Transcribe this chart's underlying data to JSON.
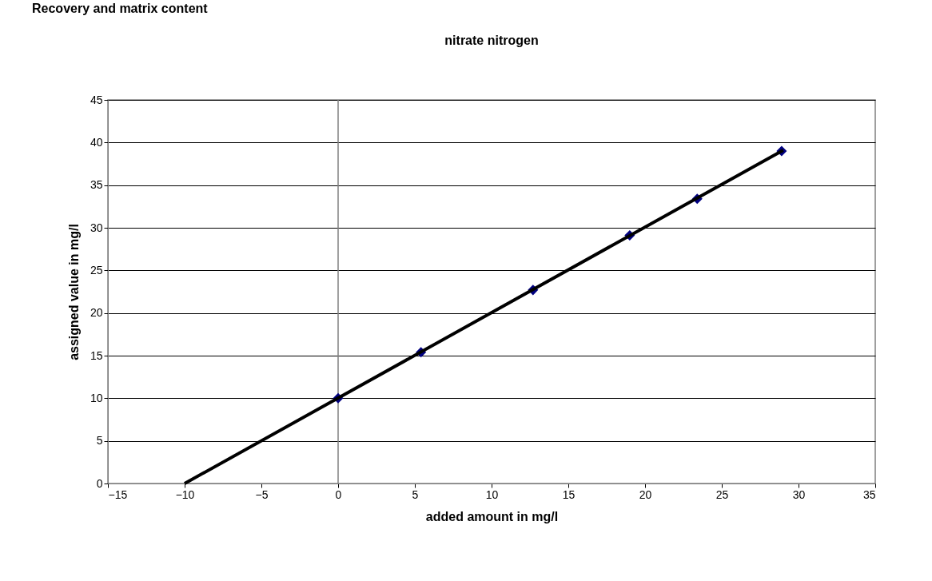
{
  "chart_data": {
    "type": "scatter",
    "title": "nitrate nitrogen",
    "xlabel": "added amount in mg/l",
    "ylabel": "assigned  value in mg/l",
    "annotations": [
      "Recovery and matrix content"
    ],
    "series": [
      {
        "color": "#000080",
        "marker": "diamond",
        "x": [
          0,
          5.4,
          12.7,
          19.0,
          23.4,
          28.9
        ],
        "values": [
          10.0,
          15.4,
          22.7,
          29.1,
          33.4,
          39.0
        ]
      },
      {
        "type": "line",
        "color": "#000000",
        "marker": "none",
        "x": [
          -10,
          29
        ],
        "values": [
          0,
          39.1
        ]
      }
    ],
    "xlim": [
      -15,
      35
    ],
    "xticks": [
      -15,
      -10,
      -5,
      0,
      5,
      10,
      15,
      20,
      25,
      30,
      35
    ],
    "ylim": [
      0,
      45
    ],
    "yticks": [
      0,
      5,
      10,
      15,
      20,
      25,
      30,
      35,
      40,
      45
    ],
    "grid": "y",
    "ref_lines": [
      {
        "axis": "x",
        "value": 0,
        "label": null,
        "color": "#808080"
      }
    ]
  }
}
